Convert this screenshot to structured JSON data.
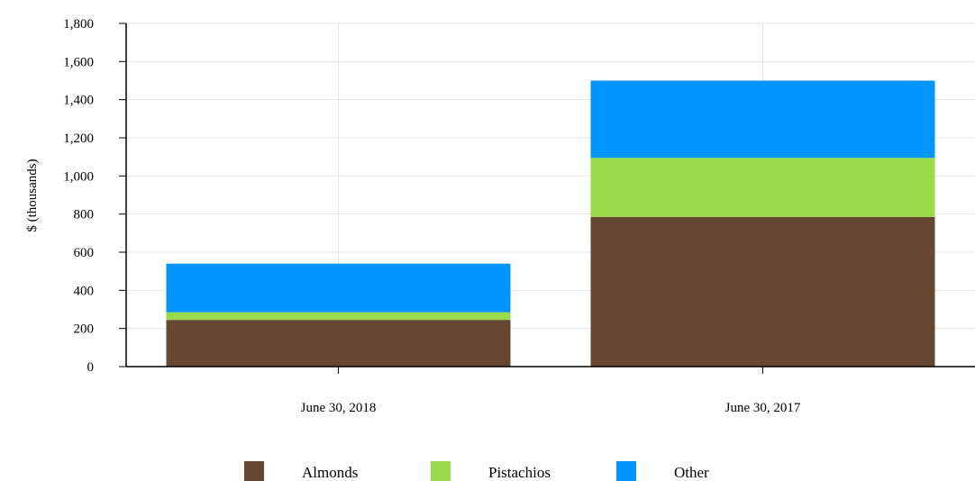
{
  "chart_data": {
    "type": "bar",
    "stacked": true,
    "categories": [
      "June 30, 2018",
      "June 30, 2017"
    ],
    "series": [
      {
        "name": "Almonds",
        "values": [
          245,
          785
        ],
        "color": "#654630"
      },
      {
        "name": "Pistachios",
        "values": [
          40,
          310
        ],
        "color": "#99db49"
      },
      {
        "name": "Other",
        "values": [
          255,
          405
        ],
        "color": "#0096fe"
      }
    ],
    "title": "",
    "xlabel": "",
    "ylabel": "$ (thousands)",
    "ylim": [
      0,
      1800
    ],
    "yticks": [
      "0",
      "200",
      "400",
      "600",
      "800",
      "1,000",
      "1,200",
      "1,400",
      "1,600",
      "1,800"
    ],
    "grid": true,
    "legend_position": "bottom"
  }
}
